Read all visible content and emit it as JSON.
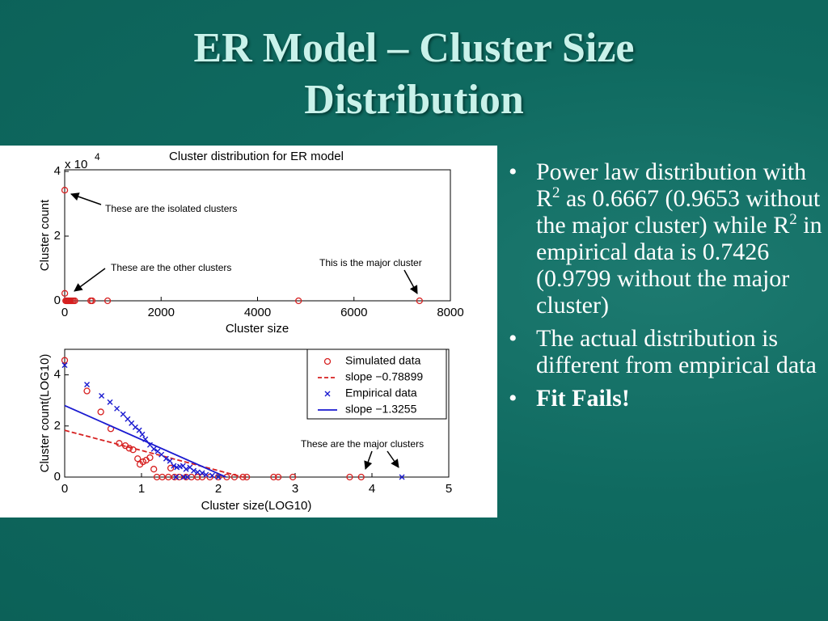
{
  "title": "ER Model – Cluster Size Distribution",
  "bullets": [
    [
      "Power law distribution with R",
      "2",
      " as 0.6667 (0.9653 without the major cluster) while R",
      "2",
      " in empirical data is 0.7426 (0.9799 without the major cluster)"
    ],
    [
      "The actual distribution is different from empirical data"
    ],
    [
      "Fit Fails!"
    ]
  ],
  "chart_data": [
    {
      "type": "scatter",
      "title": "Cluster distribution for ER model",
      "x_label": "Cluster size",
      "y_label": "Cluster count",
      "y_scale_label": "x 10",
      "y_scale_exponent": "4",
      "xlim": [
        0,
        8000
      ],
      "ylim": [
        0,
        4.05
      ],
      "xticks": [
        0,
        2000,
        4000,
        6000,
        8000
      ],
      "yticks": [
        0,
        2,
        4
      ],
      "series": [
        {
          "marker": "o",
          "color": "#d62020",
          "x": [
            1,
            2,
            20,
            40,
            60,
            80,
            100,
            120,
            150,
            180,
            210,
            540,
            570,
            890,
            4850,
            7360
          ],
          "values": [
            3.42,
            0.23,
            0,
            0,
            0,
            0,
            0,
            0,
            0,
            0,
            0,
            0,
            0,
            0,
            0,
            0
          ]
        }
      ],
      "annotations": [
        "These are the isolated clusters",
        "These are the other clusters",
        "This is the major cluster"
      ]
    },
    {
      "type": "scatter",
      "x_label": "Cluster size(LOG10)",
      "y_label": "Cluster count(LOG10)",
      "xlim": [
        0,
        5
      ],
      "ylim": [
        0,
        5
      ],
      "xticks": [
        0,
        1,
        2,
        3,
        4,
        5
      ],
      "yticks": [
        0,
        2,
        4
      ],
      "legend": "upper right",
      "series": [
        {
          "name": "Simulated data",
          "marker": "o",
          "color": "#d62020",
          "x": [
            0,
            0.29,
            0.47,
            0.6,
            0.71,
            0.79,
            0.84,
            0.89,
            0.95,
            0.98,
            1.02,
            1.06,
            1.11,
            1.16,
            1.2,
            1.27,
            1.35,
            1.38,
            1.43,
            1.49,
            1.58,
            1.65,
            1.73,
            1.79,
            1.89,
            2.0,
            2.11,
            2.21,
            2.32,
            2.37,
            2.72,
            2.78,
            2.97,
            3.71,
            3.86
          ],
          "values": [
            4.57,
            3.37,
            2.55,
            1.89,
            1.32,
            1.23,
            1.13,
            1.07,
            0.72,
            0.5,
            0.6,
            0.66,
            0.76,
            0.31,
            0,
            0,
            0,
            0.35,
            0,
            0,
            0,
            0,
            0,
            0,
            0,
            0,
            0,
            0,
            0,
            0,
            0,
            0,
            0,
            0,
            0
          ]
        },
        {
          "name": "slope −0.78899",
          "marker": "line",
          "dash": true,
          "color": "#d62020",
          "x": [
            0,
            2.32
          ],
          "values": [
            1.83,
            0
          ]
        },
        {
          "name": "Empirical data",
          "marker": "x",
          "color": "#1a1ad0",
          "x": [
            0,
            0.29,
            0.48,
            0.59,
            0.68,
            0.76,
            0.82,
            0.87,
            0.92,
            0.97,
            1.01,
            1.05,
            1.11,
            1.16,
            1.21,
            1.26,
            1.32,
            1.37,
            1.42,
            1.45,
            1.46,
            1.5,
            1.54,
            1.55,
            1.58,
            1.6,
            1.63,
            1.68,
            1.73,
            1.79,
            1.84,
            1.92,
            2.0,
            4.39
          ],
          "values": [
            4.38,
            3.62,
            3.18,
            2.93,
            2.68,
            2.46,
            2.27,
            2.11,
            1.95,
            1.83,
            1.67,
            1.48,
            1.26,
            1.1,
            1.01,
            0.88,
            0.72,
            0.63,
            0.44,
            0,
            0.38,
            0.41,
            0.44,
            0,
            0.31,
            0,
            0.38,
            0.25,
            0.19,
            0.16,
            0.09,
            0.06,
            0,
            0
          ]
        },
        {
          "name": "slope −1.3255",
          "marker": "line",
          "dash": false,
          "color": "#1a1ad0",
          "x": [
            0,
            2.1
          ],
          "values": [
            2.8,
            0
          ]
        }
      ],
      "annotations": [
        "These are the major clusters"
      ]
    }
  ]
}
